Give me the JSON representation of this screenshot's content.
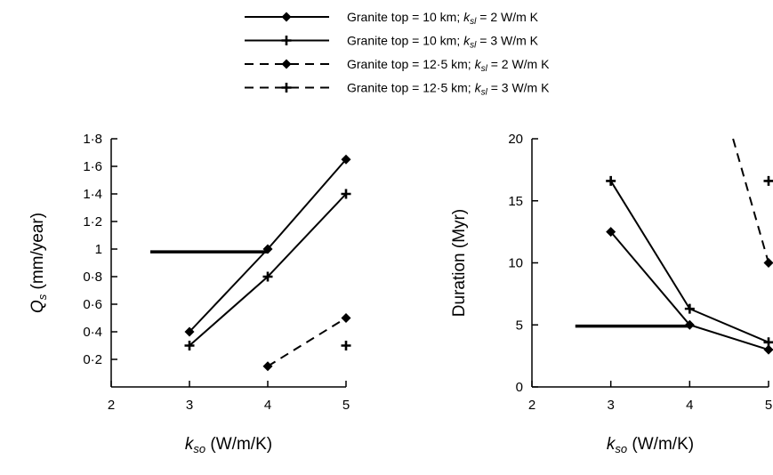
{
  "legend": [
    {
      "text": "Granite top = 10 km; ",
      "k": "k",
      "sub": "sl",
      "tail": " = 2 W/m K",
      "dash": false,
      "marker": "diamond"
    },
    {
      "text": "Granite top = 10 km; ",
      "k": "k",
      "sub": "sl",
      "tail": " = 3 W/m K",
      "dash": false,
      "marker": "plus"
    },
    {
      "text": "Granite top = 12·5 km; ",
      "k": "k",
      "sub": "sl",
      "tail": " = 2 W/m K",
      "dash": true,
      "marker": "diamond"
    },
    {
      "text": "Granite top = 12·5 km; ",
      "k": "k",
      "sub": "sl",
      "tail": " = 3 W/m K",
      "dash": true,
      "marker": "plus"
    }
  ],
  "chart_data": [
    {
      "type": "line",
      "xlabel": {
        "main": "k",
        "sub": "so",
        "tail": " (W/m/K)"
      },
      "ylabel": {
        "main": "Q",
        "sub": "s",
        "tail": " (mm/year)"
      },
      "xlim": [
        2,
        5
      ],
      "ylim": [
        0,
        1.8
      ],
      "xticks": [
        {
          "v": 2,
          "label": "2"
        },
        {
          "v": 3,
          "label": "3"
        },
        {
          "v": 4,
          "label": "4"
        },
        {
          "v": 5,
          "label": "5"
        }
      ],
      "yticks": [
        {
          "v": 0.2,
          "label": "0·2"
        },
        {
          "v": 0.4,
          "label": "0·4"
        },
        {
          "v": 0.6,
          "label": "0·6"
        },
        {
          "v": 0.8,
          "label": "0·8"
        },
        {
          "v": 1.0,
          "label": "1"
        },
        {
          "v": 1.2,
          "label": "1·2"
        },
        {
          "v": 1.4,
          "label": "1·4"
        },
        {
          "v": 1.6,
          "label": "1·6"
        },
        {
          "v": 1.8,
          "label": "1·8"
        }
      ],
      "series": [
        {
          "legend_index": 0,
          "dash": false,
          "marker": "diamond",
          "points": [
            [
              3,
              0.4
            ],
            [
              4,
              1.0
            ],
            [
              5,
              1.65
            ]
          ]
        },
        {
          "legend_index": 1,
          "dash": false,
          "marker": "plus",
          "points": [
            [
              3,
              0.3
            ],
            [
              4,
              0.8
            ],
            [
              5,
              1.4
            ]
          ]
        },
        {
          "legend_index": 2,
          "dash": true,
          "marker": "diamond",
          "points": [
            [
              4,
              0.15
            ],
            [
              5,
              0.5
            ]
          ]
        },
        {
          "legend_index": 3,
          "dash": true,
          "marker": "plus",
          "points": [
            [
              5,
              0.3
            ]
          ]
        }
      ],
      "reference_line": {
        "x": [
          2.5,
          4.0
        ],
        "y": 0.98
      }
    },
    {
      "type": "line",
      "xlabel": {
        "main": "k",
        "sub": "so",
        "tail": " (W/m/K)"
      },
      "ylabel": {
        "main": "Duration (Myr)",
        "sub": "",
        "tail": ""
      },
      "xlim": [
        2,
        5
      ],
      "ylim": [
        0,
        20
      ],
      "xticks": [
        {
          "v": 2,
          "label": "2"
        },
        {
          "v": 3,
          "label": "3"
        },
        {
          "v": 4,
          "label": "4"
        },
        {
          "v": 5,
          "label": "5"
        }
      ],
      "yticks": [
        {
          "v": 0,
          "label": "0"
        },
        {
          "v": 5,
          "label": "5"
        },
        {
          "v": 10,
          "label": "10"
        },
        {
          "v": 15,
          "label": "15"
        },
        {
          "v": 20,
          "label": "20"
        }
      ],
      "series": [
        {
          "legend_index": 0,
          "dash": false,
          "marker": "diamond",
          "points": [
            [
              3,
              12.5
            ],
            [
              4,
              5.0
            ],
            [
              5,
              3.0
            ]
          ]
        },
        {
          "legend_index": 1,
          "dash": false,
          "marker": "plus",
          "points": [
            [
              3,
              16.6
            ],
            [
              4,
              6.3
            ],
            [
              5,
              3.6
            ]
          ]
        },
        {
          "legend_index": 2,
          "dash": true,
          "marker": "diamond",
          "points": [
            [
              4.55,
              20
            ],
            [
              5,
              10.0
            ]
          ],
          "marker_points": [
            [
              5,
              10.0
            ]
          ]
        },
        {
          "legend_index": 3,
          "dash": true,
          "marker": "plus",
          "points": [
            [
              5,
              16.6
            ]
          ]
        }
      ],
      "reference_line": {
        "x": [
          2.55,
          4.0
        ],
        "y": 4.9
      }
    }
  ]
}
